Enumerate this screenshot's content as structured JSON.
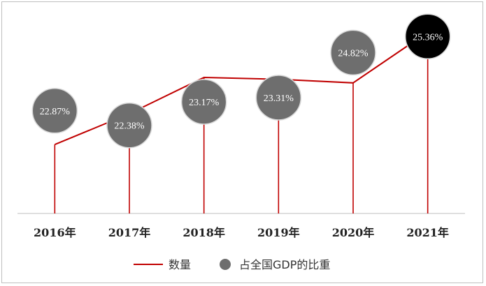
{
  "chart_data": {
    "type": "line",
    "categories": [
      "2016年",
      "2017年",
      "2018年",
      "2019年",
      "2020年",
      "2021年"
    ],
    "series": [
      {
        "name": "数量",
        "type": "line",
        "color": "#c00000",
        "values": [
          0.38,
          0.55,
          0.75,
          0.74,
          0.72,
          1.0
        ]
      },
      {
        "name": "占全国GDP的比重",
        "type": "bubble",
        "color": "#6e6e6e",
        "highlight_color": "#000000",
        "values": [
          22.87,
          22.38,
          23.17,
          23.31,
          24.82,
          25.36
        ],
        "labels": [
          "22.87%",
          "22.38%",
          "23.17%",
          "23.31%",
          "24.82%",
          "25.36%"
        ]
      }
    ],
    "legend": {
      "position": "bottom",
      "items": [
        {
          "name": "数量",
          "marker": "line"
        },
        {
          "name": "占全国GDP的比重",
          "marker": "circle"
        }
      ]
    },
    "grid": false
  }
}
